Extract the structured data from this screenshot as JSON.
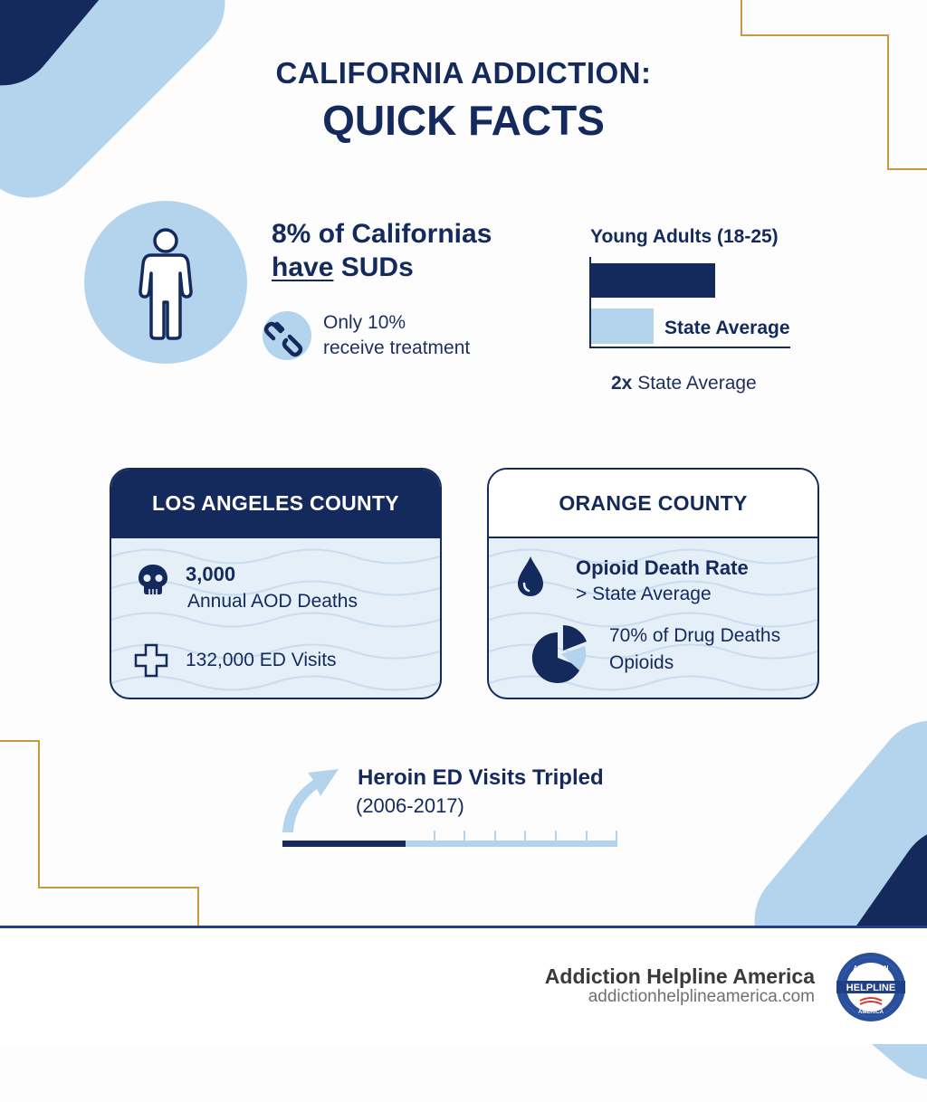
{
  "title": {
    "line1": "CALIFORNIA ADDICTION:",
    "line2": "QUICK FACTS"
  },
  "stat_prevalence": {
    "icon": "person-icon",
    "headline_pre": "8% of Californias",
    "headline_underlined": "have",
    "headline_post": " SUDs",
    "treatment_icon": "chain-link-icon",
    "treatment_line1": "Only 10%",
    "treatment_line2": "receive treatment"
  },
  "young_adults": {
    "title": "Young Adults (18-25)",
    "state_label": "State Average",
    "caption_bold": "2x",
    "caption_rest": " State Average"
  },
  "chart_data": {
    "type": "bar",
    "orientation": "horizontal",
    "title": "Young Adults (18-25)",
    "categories": [
      "Young Adults (18-25)",
      "State Average"
    ],
    "values": [
      2,
      1
    ],
    "annotations": [
      "2x State Average"
    ],
    "colors": [
      "#14295c",
      "#b3d4ec"
    ],
    "xlabel": "",
    "ylabel": "",
    "grid": false
  },
  "counties": [
    {
      "name": "LOS ANGELES COUNTY",
      "items": [
        {
          "icon": "skull-icon",
          "value": "3,000",
          "label": "Annual AOD Deaths"
        },
        {
          "icon": "medical-cross-icon",
          "label": "132,000 ED Visits"
        }
      ]
    },
    {
      "name": "ORANGE COUNTY",
      "items": [
        {
          "icon": "drop-icon",
          "value": "Opioid Death Rate",
          "label": "> State Average"
        },
        {
          "icon": "pie-chart-icon",
          "value": "70% of Drug Deaths",
          "label": "Opioids"
        }
      ]
    }
  ],
  "trend": {
    "icon": "arrow-up-curve-icon",
    "title": "Heroin ED Visits Tripled",
    "period": "(2006-2017)"
  },
  "footer": {
    "brand": "Addiction Helpline America",
    "url": "addictionhelplineamerica.com",
    "seal_top": "ADDICTION",
    "seal_middle": "HELPLINE",
    "seal_bottom": "AMERICA"
  },
  "colors": {
    "navy": "#14295c",
    "light_blue": "#b3d4ec",
    "gold": "#c99a46",
    "card_bg": "#e4eff8",
    "footer_line": "#233f8b"
  }
}
